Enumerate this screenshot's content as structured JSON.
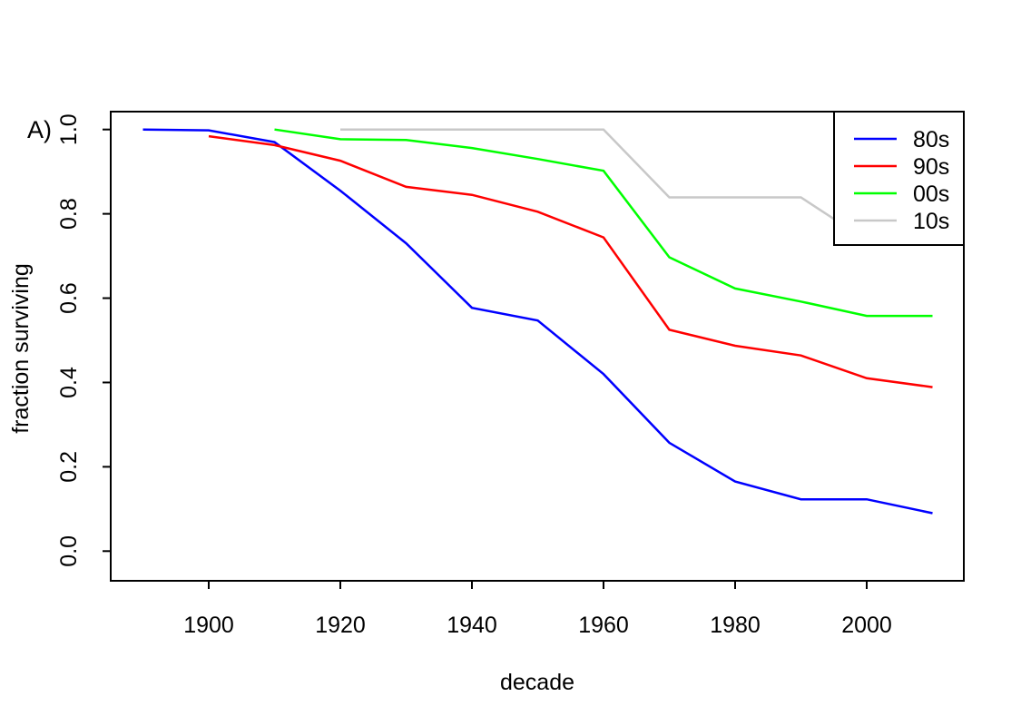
{
  "figure": {
    "panel_label": "A)"
  },
  "chart_data": {
    "type": "line",
    "title": "",
    "xlabel": "decade",
    "ylabel": "fraction surviving",
    "grid": false,
    "xlim": [
      1885.1,
      2014.8
    ],
    "ylim": [
      -0.07,
      1.04
    ],
    "x_ticks": [
      1900,
      1920,
      1940,
      1960,
      1980,
      2000
    ],
    "x_tick_labels": [
      "1900",
      "1920",
      "1940",
      "1960",
      "1980",
      "2000"
    ],
    "y_ticks": [
      0.0,
      0.2,
      0.4,
      0.6,
      0.8,
      1.0
    ],
    "y_tick_labels": [
      "0.0",
      "0.2",
      "0.4",
      "0.6",
      "0.8",
      "1.0"
    ],
    "legend": {
      "position": "top-right",
      "border": true,
      "background": "#ffffff",
      "entries": [
        {
          "label": "80s",
          "color": "#0000ff"
        },
        {
          "label": "90s",
          "color": "#ff0000"
        },
        {
          "label": "00s",
          "color": "#00ff00"
        },
        {
          "label": "10s",
          "color": "#c8c8c8"
        }
      ]
    },
    "series": [
      {
        "name": "80s",
        "color": "#0000ff",
        "x": [
          1890,
          1900,
          1910,
          1920,
          1930,
          1940,
          1950,
          1960,
          1970,
          1980,
          1990,
          2000,
          2010
        ],
        "y": [
          1.0,
          0.998,
          0.97,
          0.855,
          0.73,
          0.577,
          0.547,
          0.42,
          0.257,
          0.165,
          0.123,
          0.123,
          0.09
        ]
      },
      {
        "name": "90s",
        "color": "#ff0000",
        "x": [
          1900,
          1910,
          1920,
          1930,
          1940,
          1950,
          1960,
          1970,
          1980,
          1990,
          2000,
          2010
        ],
        "y": [
          0.984,
          0.963,
          0.926,
          0.864,
          0.845,
          0.805,
          0.744,
          0.525,
          0.487,
          0.464,
          0.41,
          0.389
        ]
      },
      {
        "name": "00s",
        "color": "#00ff00",
        "x": [
          1910,
          1920,
          1930,
          1940,
          1950,
          1960,
          1970,
          1980,
          1990,
          2000,
          2010
        ],
        "y": [
          1.0,
          0.977,
          0.975,
          0.956,
          0.93,
          0.902,
          0.697,
          0.623,
          0.592,
          0.558,
          0.558
        ]
      },
      {
        "name": "10s",
        "color": "#c8c8c8",
        "x": [
          1920,
          1930,
          1940,
          1950,
          1960,
          1970,
          1980,
          1990,
          2000
        ],
        "y": [
          1.0,
          1.0,
          1.0,
          1.0,
          1.0,
          0.839,
          0.839,
          0.839,
          0.737
        ]
      }
    ]
  }
}
